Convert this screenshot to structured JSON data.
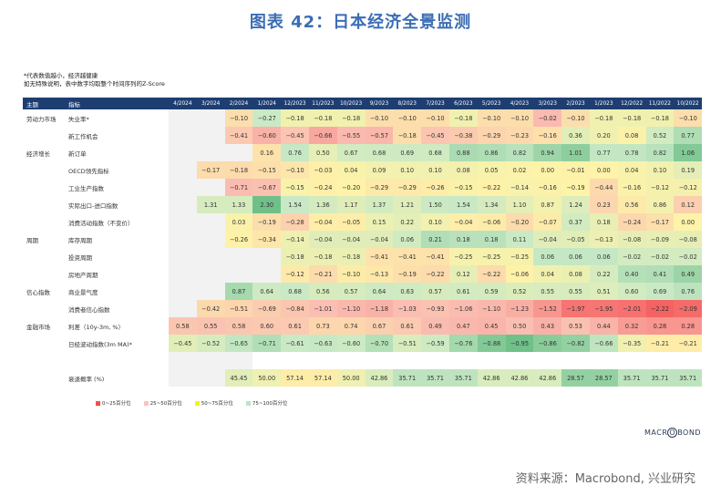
{
  "title": "图表 42：日本经济全景监测",
  "notes": [
    "*代表数值越小，经济越健康",
    "如无特殊说明，表中数字均取整个时间序列的Z-Score"
  ],
  "chart_data": {
    "type": "table",
    "columns": {
      "theme": "主题",
      "indicator": "指标"
    },
    "dates": [
      "4/2024",
      "3/2024",
      "2/2024",
      "1/2024",
      "12/2023",
      "11/2023",
      "10/2023",
      "9/2023",
      "8/2023",
      "7/2023",
      "6/2023",
      "5/2023",
      "4/2023",
      "3/2023",
      "2/2023",
      "1/2023",
      "12/2022",
      "11/2022",
      "10/2022"
    ],
    "rows": [
      {
        "theme": "劳动力市场",
        "indicator": "失业率*",
        "values": [
          null,
          null,
          "-0.10",
          "-0.27",
          "-0.18",
          "-0.18",
          "-0.18",
          "-0.10",
          "-0.10",
          "-0.10",
          "-0.18",
          "-0.10",
          "-0.10",
          "-0.02",
          "-0.10",
          "-0.18",
          "-0.18",
          "-0.18",
          "-0.10"
        ]
      },
      {
        "theme": "",
        "indicator": "新工作机会",
        "values": [
          null,
          null,
          "-0.41",
          "-0.60",
          "-0.45",
          "-0.66",
          "-0.55",
          "-0.57",
          "-0.18",
          "-0.45",
          "-0.38",
          "-0.29",
          "-0.23",
          "-0.16",
          "0.36",
          "0.20",
          "0.08",
          "0.52",
          "0.77"
        ]
      },
      {
        "theme": "经济增长",
        "indicator": "新订单",
        "values": [
          null,
          null,
          null,
          "0.16",
          "0.76",
          "0.50",
          "0.67",
          "0.68",
          "0.69",
          "0.68",
          "0.88",
          "0.86",
          "0.82",
          "0.94",
          "1.01",
          "0.77",
          "0.78",
          "0.82",
          "1.06"
        ]
      },
      {
        "theme": "",
        "indicator": "OECD领先指标",
        "values": [
          null,
          "-0.17",
          "-0.18",
          "-0.15",
          "-0.10",
          "-0.03",
          "0.04",
          "0.09",
          "0.10",
          "0.10",
          "0.08",
          "0.05",
          "0.02",
          "0.00",
          "-0.01",
          "0.00",
          "0.04",
          "0.10",
          "0.19"
        ]
      },
      {
        "theme": "",
        "indicator": "工业生产指数",
        "values": [
          null,
          null,
          "-0.71",
          "-0.67",
          "-0.15",
          "-0.24",
          "-0.20",
          "-0.29",
          "-0.29",
          "-0.26",
          "-0.15",
          "-0.22",
          "-0.14",
          "-0.16",
          "-0.19",
          "-0.44",
          "-0.16",
          "-0.12",
          "-0.12"
        ]
      },
      {
        "theme": "",
        "indicator": "实际出口-进口指数",
        "values": [
          null,
          "1.31",
          "1.33",
          "2.30",
          "1.54",
          "1.36",
          "1.17",
          "1.37",
          "1.21",
          "1.50",
          "1.54",
          "1.34",
          "1.10",
          "0.87",
          "1.24",
          "0.23",
          "0.56",
          "0.86",
          "0.12"
        ]
      },
      {
        "theme": "",
        "indicator": "消费活动指数（不变价）",
        "values": [
          null,
          null,
          "0.03",
          "-0.19",
          "-0.28",
          "-0.04",
          "-0.05",
          "0.15",
          "0.22",
          "0.10",
          "-0.04",
          "-0.06",
          "-0.20",
          "-0.07",
          "0.37",
          "0.18",
          "-0.24",
          "-0.17",
          "0.00"
        ]
      },
      {
        "theme": "周期",
        "indicator": "库存周期",
        "values": [
          null,
          null,
          "-0.26",
          "-0.34",
          "-0.14",
          "-0.04",
          "-0.04",
          "-0.04",
          "0.06",
          "0.21",
          "0.18",
          "0.18",
          "0.11",
          "-0.04",
          "-0.05",
          "-0.13",
          "-0.08",
          "-0.09",
          "-0.08"
        ]
      },
      {
        "theme": "",
        "indicator": "投资周期",
        "values": [
          null,
          null,
          null,
          null,
          "-0.18",
          "-0.18",
          "-0.18",
          "-0.41",
          "-0.41",
          "-0.41",
          "-0.25",
          "-0.25",
          "-0.25",
          "0.06",
          "0.06",
          "0.06",
          "-0.02",
          "-0.02",
          "-0.02"
        ]
      },
      {
        "theme": "",
        "indicator": "房地产周期",
        "values": [
          null,
          null,
          null,
          null,
          "-0.12",
          "-0.21",
          "-0.10",
          "-0.13",
          "-0.19",
          "-0.22",
          "0.12",
          "-0.22",
          "-0.06",
          "0.04",
          "0.08",
          "0.22",
          "0.40",
          "0.41",
          "0.49"
        ]
      },
      {
        "theme": "信心指数",
        "indicator": "商业景气度",
        "values": [
          null,
          null,
          "0.87",
          "0.64",
          "0.68",
          "0.56",
          "0.57",
          "0.64",
          "0.63",
          "0.57",
          "0.61",
          "0.59",
          "0.52",
          "0.55",
          "0.55",
          "0.51",
          "0.60",
          "0.69",
          "0.76"
        ]
      },
      {
        "theme": "",
        "indicator": "消费者信心指数",
        "values": [
          null,
          "-0.42",
          "-0.51",
          "-0.69",
          "-0.84",
          "-1.01",
          "-1.10",
          "-1.18",
          "-1.03",
          "-0.93",
          "-1.06",
          "-1.10",
          "-1.23",
          "-1.52",
          "-1.97",
          "-1.95",
          "-2.01",
          "-2.22",
          "-2.09"
        ]
      },
      {
        "theme": "金融市场",
        "indicator": "利差（10y-3m, %）",
        "values": [
          "0.58",
          "0.55",
          "0.58",
          "0.60",
          "0.61",
          "0.73",
          "0.74",
          "0.67",
          "0.61",
          "0.49",
          "0.47",
          "0.45",
          "0.50",
          "0.43",
          "0.53",
          "0.44",
          "0.32",
          "0.28",
          "0.28"
        ]
      },
      {
        "theme": "",
        "indicator": "日经波动指数(3m MA)*",
        "values": [
          "-0.45",
          "-0.52",
          "-0.65",
          "-0.71",
          "-0.61",
          "-0.63",
          "-0.60",
          "-0.70",
          "-0.51",
          "-0.59",
          "-0.76",
          "-0.88",
          "-0.95",
          "-0.86",
          "-0.82",
          "-0.66",
          "-0.35",
          "-0.21",
          "-0.21"
        ]
      }
    ],
    "summary_row": {
      "indicator": "衰退概率 (%)",
      "values": [
        null,
        null,
        "45.45",
        "50.00",
        "57.14",
        "57.14",
        "50.00",
        "42.86",
        "35.71",
        "35.71",
        "35.71",
        "42.86",
        "42.86",
        "42.86",
        "28.57",
        "28.57",
        "35.71",
        "35.71",
        "35.71"
      ]
    },
    "legend": [
      {
        "label": "0~25百分位",
        "color": "#f0504f"
      },
      {
        "label": "25~50百分位",
        "color": "#f9c4b8"
      },
      {
        "label": "50~75百分位",
        "color": "#f5f500"
      },
      {
        "label": "75~100百分位",
        "color": "#b9e4c9"
      }
    ],
    "header_color": "#1e3e72"
  },
  "logo": "MACROBOND",
  "source": "资料来源：Macrobond, 兴业研究"
}
